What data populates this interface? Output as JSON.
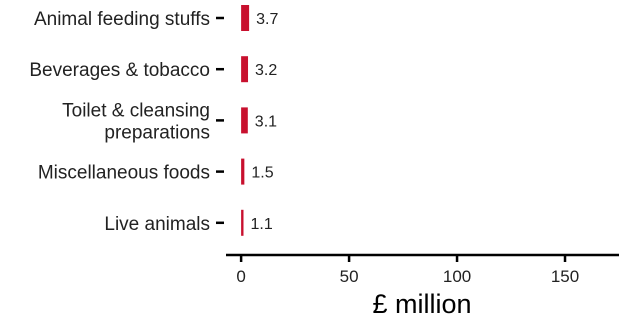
{
  "chart_data": {
    "type": "bar",
    "orientation": "horizontal",
    "categories": [
      "Animal feeding stuffs",
      "Beverages & tobacco",
      "Toilet & cleansing preparations",
      "Miscellaneous foods",
      "Live animals"
    ],
    "category_label_lines": [
      [
        "Animal feeding stuffs"
      ],
      [
        "Beverages & tobacco"
      ],
      [
        "Toilet & cleansing",
        "preparations"
      ],
      [
        "Miscellaneous foods"
      ],
      [
        "Live animals"
      ]
    ],
    "values": [
      3.7,
      3.2,
      3.1,
      1.5,
      1.1
    ],
    "data_labels": [
      "3.7",
      "3.2",
      "3.1",
      "1.5",
      "1.1"
    ],
    "xlabel": "£ million",
    "ylabel": "",
    "title": "",
    "xlim": [
      -7,
      175
    ],
    "xticks": [
      0,
      50,
      100,
      150
    ],
    "xtick_labels": [
      "0",
      "50",
      "100",
      "150"
    ],
    "grid": false,
    "legend": "none",
    "bar_color": "#c8102e"
  }
}
